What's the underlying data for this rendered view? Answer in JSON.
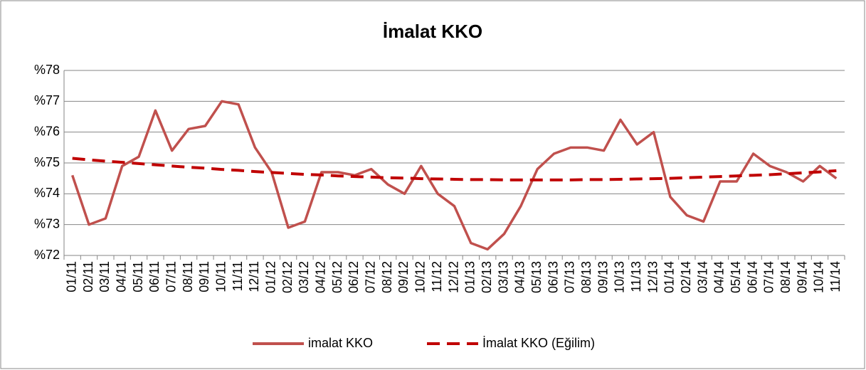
{
  "chart_data": {
    "type": "line",
    "title": "İmalat KKO",
    "categories": [
      "01/11",
      "02/11",
      "03/11",
      "04/11",
      "05/11",
      "06/11",
      "07/11",
      "08/11",
      "09/11",
      "10/11",
      "11/11",
      "12/11",
      "01/12",
      "02/12",
      "03/12",
      "04/12",
      "05/12",
      "06/12",
      "07/12",
      "08/12",
      "09/12",
      "10/12",
      "11/12",
      "12/12",
      "01/13",
      "02/13",
      "03/13",
      "04/13",
      "05/13",
      "06/13",
      "07/13",
      "08/13",
      "09/13",
      "10/13",
      "11/13",
      "12/13",
      "01/14",
      "02/14",
      "03/14",
      "04/14",
      "05/14",
      "06/14",
      "07/14",
      "08/14",
      "09/14",
      "10/14",
      "11/14"
    ],
    "series": [
      {
        "name": "imalat KKO",
        "color": "#c0504d",
        "dashed": false,
        "values": [
          74.6,
          73.0,
          73.2,
          74.9,
          75.2,
          76.7,
          75.4,
          76.1,
          76.2,
          77.0,
          76.9,
          75.5,
          74.7,
          72.9,
          73.1,
          74.7,
          74.7,
          74.6,
          74.8,
          74.3,
          74.0,
          74.9,
          74.0,
          73.6,
          72.4,
          72.2,
          72.7,
          73.6,
          74.8,
          75.3,
          75.5,
          75.5,
          75.4,
          76.4,
          75.6,
          76.0,
          73.9,
          73.3,
          73.1,
          74.4,
          74.4,
          75.3,
          74.9,
          74.7,
          74.4,
          74.9,
          74.5
        ]
      },
      {
        "name": "İmalat KKO (Eğilim)",
        "color": "#c00000",
        "dashed": true,
        "values": [
          75.15,
          75.1,
          75.06,
          75.02,
          74.98,
          74.94,
          74.9,
          74.86,
          74.83,
          74.79,
          74.76,
          74.72,
          74.69,
          74.66,
          74.63,
          74.61,
          74.58,
          74.56,
          74.54,
          74.52,
          74.51,
          74.49,
          74.48,
          74.47,
          74.46,
          74.46,
          74.45,
          74.45,
          74.45,
          74.45,
          74.45,
          74.46,
          74.46,
          74.47,
          74.48,
          74.49,
          74.5,
          74.52,
          74.54,
          74.56,
          74.58,
          74.6,
          74.62,
          74.65,
          74.68,
          74.71,
          74.75
        ]
      }
    ],
    "ylim": [
      72,
      78
    ],
    "yticks": [
      {
        "value": 72,
        "label": "%72"
      },
      {
        "value": 73,
        "label": "%73"
      },
      {
        "value": 74,
        "label": "%74"
      },
      {
        "value": 75,
        "label": "%75"
      },
      {
        "value": 76,
        "label": "%76"
      },
      {
        "value": 77,
        "label": "%77"
      },
      {
        "value": 78,
        "label": "%78"
      }
    ],
    "grid": true,
    "legend": "bottom"
  }
}
